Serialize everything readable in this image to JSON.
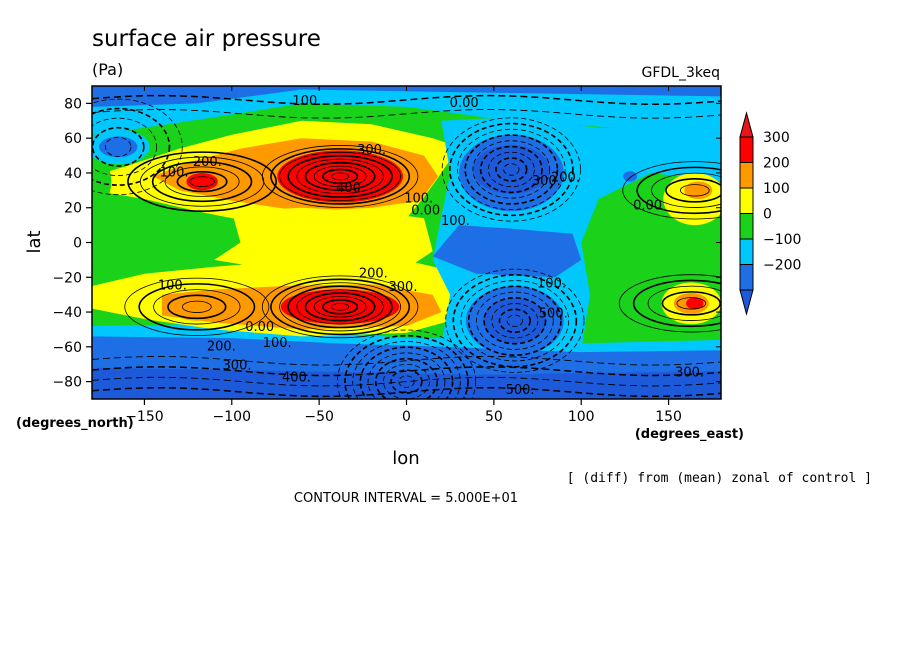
{
  "chart_data": {
    "type": "heatmap",
    "title": "surface air pressure",
    "units": "(Pa)",
    "model_label": "GFDL_3keq",
    "xlabel": "lon",
    "ylabel": "lat",
    "x_units_note": "(degrees_east)",
    "y_units_note": "(degrees_north)",
    "subtitle_note": "[ (diff) from (mean) zonal of control ]",
    "contour_interval_text": "CONTOUR INTERVAL = 5.000E+01",
    "xlim": [
      -180,
      180
    ],
    "ylim": [
      -90,
      90
    ],
    "x_ticks": [
      -150,
      -100,
      -50,
      0,
      50,
      100,
      150
    ],
    "x_tick_labels": [
      "−150",
      "−100",
      "−50",
      "0",
      "50",
      "100",
      "150"
    ],
    "y_ticks": [
      -80,
      -60,
      -40,
      -20,
      0,
      20,
      40,
      60,
      80
    ],
    "y_tick_labels": [
      "−80",
      "−60",
      "−40",
      "−20",
      "0",
      "20",
      "40",
      "60",
      "80"
    ],
    "colorbar": {
      "levels": [
        -200,
        -100,
        0,
        100,
        200,
        300
      ],
      "labels": [
        "−200",
        "−100",
        "0",
        "100",
        "200",
        "300"
      ],
      "colors": [
        "#1e6fe6",
        "#00c8ff",
        "#1ad21a",
        "#ffff00",
        "#ff9900",
        "#ff0000"
      ],
      "under_color": "#1c5ad9",
      "over_color": "#e8161a"
    },
    "contour_labels": [
      {
        "text": "100.",
        "lon": -57,
        "lat": 79
      },
      {
        "text": "0.00",
        "lon": 33,
        "lat": 78
      },
      {
        "text": "300.",
        "lon": -20,
        "lat": 51
      },
      {
        "text": "200.",
        "lon": -114,
        "lat": 44
      },
      {
        "text": "100.",
        "lon": -133,
        "lat": 38
      },
      {
        "text": "400.",
        "lon": -32,
        "lat": 29
      },
      {
        "text": "100.",
        "lon": 7,
        "lat": 23
      },
      {
        "text": "0.00",
        "lon": 11,
        "lat": 16
      },
      {
        "text": "100.",
        "lon": 28,
        "lat": 10
      },
      {
        "text": "300.",
        "lon": 80,
        "lat": 33
      },
      {
        "text": "200.",
        "lon": 91,
        "lat": 35
      },
      {
        "text": "0.00",
        "lon": 138,
        "lat": 19
      },
      {
        "text": "200.",
        "lon": -19,
        "lat": -20
      },
      {
        "text": "300.",
        "lon": -2,
        "lat": -28
      },
      {
        "text": "100.",
        "lon": -134,
        "lat": -27
      },
      {
        "text": "0.00",
        "lon": -84,
        "lat": -51
      },
      {
        "text": "100.",
        "lon": -74,
        "lat": -60
      },
      {
        "text": "200.",
        "lon": -106,
        "lat": -62
      },
      {
        "text": "300.",
        "lon": -97,
        "lat": -73
      },
      {
        "text": "400.",
        "lon": -63,
        "lat": -80
      },
      {
        "text": "100.",
        "lon": 83,
        "lat": -26
      },
      {
        "text": "500.",
        "lon": 84,
        "lat": -43
      },
      {
        "text": "500.",
        "lon": 65,
        "lat": -87
      },
      {
        "text": "300.",
        "lon": 162,
        "lat": -77
      }
    ],
    "features": [
      {
        "kind": "high",
        "lon_center": -38,
        "lat_center": 38,
        "value": 450
      },
      {
        "kind": "high",
        "lon_center": -38,
        "lat_center": -37,
        "value": 450
      },
      {
        "kind": "high",
        "lon_center": -117,
        "lat_center": 35,
        "value": 300
      },
      {
        "kind": "high",
        "lon_center": -120,
        "lat_center": -37,
        "value": 250
      },
      {
        "kind": "high",
        "lon_center": 165,
        "lat_center": 30,
        "value": 250
      },
      {
        "kind": "high",
        "lon_center": 163,
        "lat_center": -35,
        "value": 250
      },
      {
        "kind": "low",
        "lon_center": 60,
        "lat_center": 42,
        "value": -450
      },
      {
        "kind": "low",
        "lon_center": 62,
        "lat_center": -45,
        "value": -450
      },
      {
        "kind": "low",
        "lon_center": -165,
        "lat_center": 55,
        "value": -250
      },
      {
        "kind": "low",
        "lon_center": 0,
        "lat_center": -80,
        "value": -450
      }
    ]
  }
}
